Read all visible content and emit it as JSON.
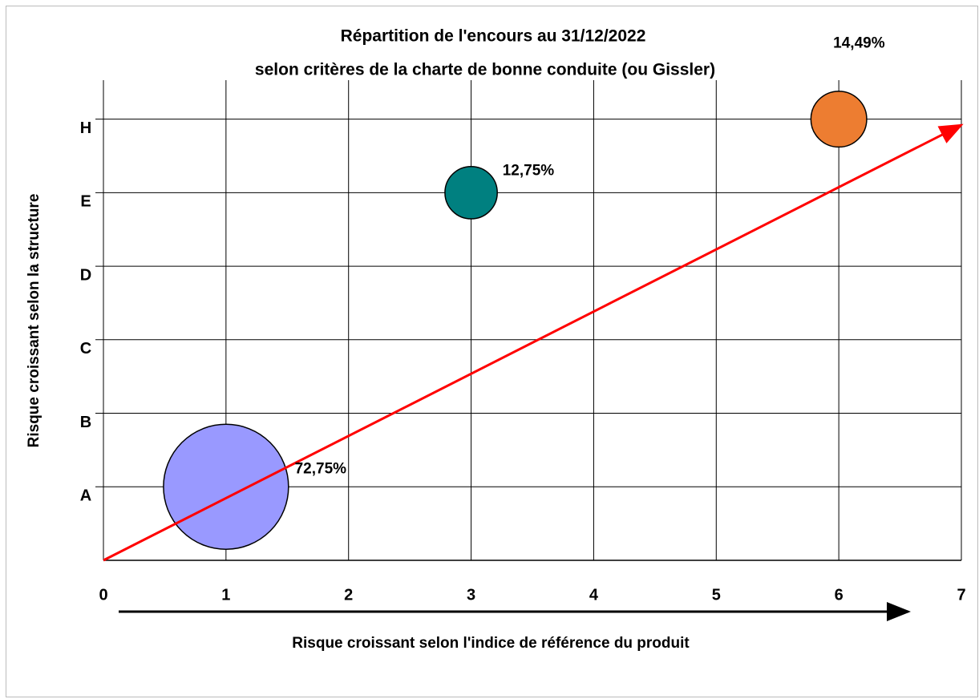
{
  "chart_data": {
    "type": "bubble",
    "title": [
      "Répartition de l'encours au 31/12/2022",
      "selon critères de la charte de bonne conduite (ou Gissler)"
    ],
    "x_label": "Risque croissant selon l'indice de référence du produit",
    "y_label": "Risque croissant selon la structure",
    "x": [
      1,
      3,
      6
    ],
    "values": [
      1,
      5,
      6
    ],
    "sizes": [
      72.75,
      12.75,
      14.49
    ],
    "value_labels": [
      "72,75%",
      "12,75%",
      "14,49%"
    ],
    "colors": [
      "#9999ff",
      "#008080",
      "#ed7d31"
    ],
    "trend_line": {
      "x": [
        0,
        7
      ],
      "values": [
        0,
        5.92
      ],
      "color": "#ff0000"
    },
    "xlim": [
      0,
      7
    ],
    "ylim": [
      0,
      6.53
    ],
    "xticks": [
      0,
      1,
      2,
      3,
      4,
      5,
      6,
      7
    ],
    "yticks": [
      {
        "value": 1,
        "label": "A"
      },
      {
        "value": 2,
        "label": "B"
      },
      {
        "value": 3,
        "label": "C"
      },
      {
        "value": 4,
        "label": "D"
      },
      {
        "value": 5,
        "label": "E"
      },
      {
        "value": 6,
        "label": "H"
      }
    ],
    "grid": true
  }
}
